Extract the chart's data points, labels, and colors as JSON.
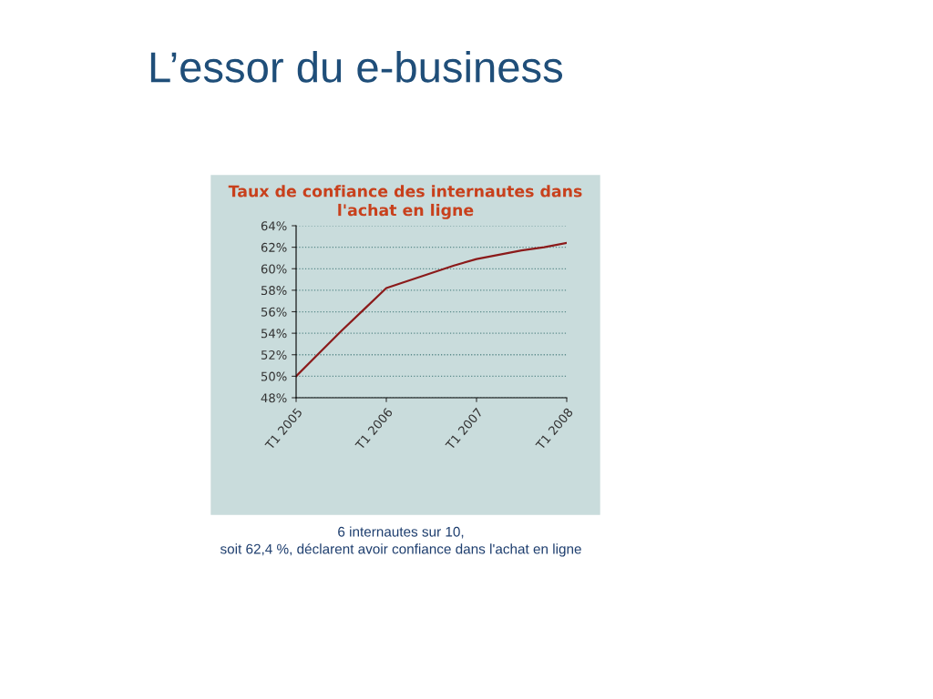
{
  "chart_data": {
    "type": "line",
    "title": "L’essor du e-business",
    "subtitle": "Taux de confiance des internautes dans\nl'achat en ligne",
    "categories": [
      "T1 2005",
      null,
      null,
      null,
      "T1 2006",
      null,
      null,
      null,
      "T1 2007",
      null,
      null,
      null,
      "T1 2008"
    ],
    "series": [
      {
        "color": "#8b1a1a",
        "values": [
          50.0,
          52.1,
          54.2,
          56.2,
          58.2,
          58.9,
          59.6,
          60.3,
          60.9,
          61.3,
          61.7,
          62.0,
          62.4
        ]
      }
    ],
    "ylim": [
      48,
      64
    ],
    "yticks": [
      {
        "value": 48,
        "label": "48%"
      },
      {
        "value": 50,
        "label": "50%"
      },
      {
        "value": 52,
        "label": "52%"
      },
      {
        "value": 54,
        "label": "54%"
      },
      {
        "value": 56,
        "label": "56%"
      },
      {
        "value": 58,
        "label": "58%"
      },
      {
        "value": 60,
        "label": "60%"
      },
      {
        "value": 62,
        "label": "62%"
      },
      {
        "value": 64,
        "label": "64%"
      }
    ],
    "grid": "y",
    "marker": "none",
    "line_style": "solid",
    "legend": false,
    "annotations": [
      "6 internautes sur 10,\nsoit 62,4 %, déclarent avoir confiance dans l'achat en ligne"
    ]
  }
}
